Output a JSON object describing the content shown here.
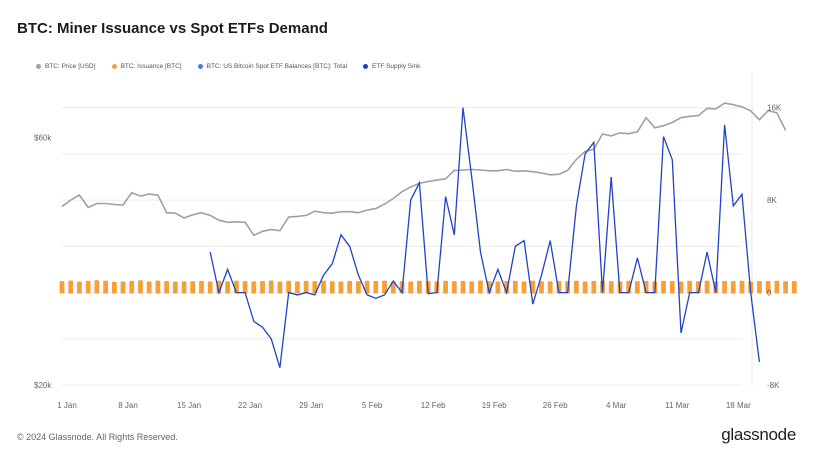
{
  "header": {
    "title": "BTC: Miner Issuance vs Spot ETFs Demand"
  },
  "legend": [
    {
      "label": "BTC: Price [USD]",
      "color": "#9aa3a3"
    },
    {
      "label": "BTC: Issuance [BTC]",
      "color": "#f5a03a"
    },
    {
      "label": "BTC: US Bitcoin Spot ETF Balances [BTC]: Total",
      "color": "#3d7ee0"
    },
    {
      "label": "ETF Supply Sink",
      "color": "#2142c8"
    }
  ],
  "footer": {
    "copyright": "© 2024 Glassnode. All Rights Reserved.",
    "brand": "glassnode"
  },
  "chart_data": {
    "type": "line",
    "title": "BTC: Miner Issuance vs Spot ETFs Demand",
    "x_tick_labels": [
      "1 Jan",
      "8 Jan",
      "15 Jan",
      "22 Jan",
      "29 Jan",
      "5 Feb",
      "12 Feb",
      "19 Feb",
      "26 Feb",
      "4 Mar",
      "11 Mar",
      "18 Mar"
    ],
    "y_left_tick_labels": [
      "$60k",
      "$20k"
    ],
    "y_left_log": true,
    "y_left_range": [
      20000,
      80000
    ],
    "y_right_tick_labels": [
      "16K",
      "8K",
      "0",
      "-8K"
    ],
    "y_right_range": [
      -8000,
      19000
    ],
    "grid": true,
    "legend_position": "top-left",
    "series": [
      {
        "name": "BTC: Price [USD]",
        "axis": "left",
        "color": "#9aa3a3",
        "start_day": 0,
        "values": [
          44200,
          45500,
          46500,
          44000,
          44800,
          44800,
          44600,
          44500,
          47000,
          46300,
          46700,
          46500,
          43000,
          42900,
          42000,
          42600,
          43000,
          42500,
          41600,
          41200,
          41300,
          41200,
          38900,
          39600,
          39900,
          39700,
          42200,
          42300,
          42500,
          43300,
          43000,
          42900,
          43200,
          43200,
          43000,
          43500,
          43800,
          44700,
          45800,
          47200,
          48200,
          49000,
          49400,
          49700,
          50000,
          51900,
          52000,
          52100,
          52000,
          51800,
          51800,
          52100,
          51700,
          51800,
          51600,
          51300,
          50900,
          51000,
          51900,
          54500,
          56500,
          57000,
          61000,
          60500,
          61300,
          61100,
          61600,
          65600,
          62700,
          63300,
          64200,
          65600,
          66000,
          66200,
          68400,
          68200,
          70000,
          69500,
          68800,
          67600,
          65000,
          67700,
          67000,
          62000
        ]
      },
      {
        "name": "BTC: Issuance [BTC]",
        "axis": "right",
        "color": "#f5a03a",
        "start_day": 0,
        "values": [
          900,
          960,
          870,
          940,
          990,
          930,
          850,
          880,
          920,
          980,
          870,
          950,
          910,
          870,
          880,
          900,
          920,
          870,
          950,
          880,
          930,
          900,
          880,
          910,
          960,
          870,
          930,
          880,
          920,
          900,
          950,
          890,
          870,
          920,
          900,
          940,
          910,
          950,
          880,
          900,
          870,
          930,
          910,
          890,
          940,
          900,
          920,
          880,
          960,
          900,
          870,
          910,
          930,
          880,
          950,
          900,
          890,
          920,
          900,
          940,
          880,
          910,
          950,
          900,
          870,
          930,
          900,
          920,
          890,
          940,
          910,
          880,
          930,
          900,
          950,
          870,
          920,
          900,
          940,
          880,
          910,
          900,
          930,
          890,
          900
        ]
      },
      {
        "name": "ETF Supply Sink",
        "axis": "right",
        "color": "#2142c8",
        "start_day": 17,
        "values": [
          3500,
          0,
          2000,
          0,
          0,
          -2500,
          -3000,
          -4000,
          -6500,
          0,
          -200,
          0,
          -200,
          1500,
          2500,
          5000,
          4000,
          1500,
          -200,
          -500,
          -200,
          1000,
          0,
          8000,
          9500,
          -100,
          0,
          8300,
          5000,
          16000,
          10000,
          3500,
          0,
          2000,
          0,
          4000,
          4500,
          -1000,
          1500,
          4500,
          0,
          0,
          7500,
          12000,
          13000,
          0,
          10000,
          0,
          0,
          3000,
          0,
          0,
          13500,
          11500,
          -3500,
          0,
          0,
          3500,
          0,
          14500,
          7500,
          8500,
          0,
          -6000
        ]
      }
    ]
  }
}
